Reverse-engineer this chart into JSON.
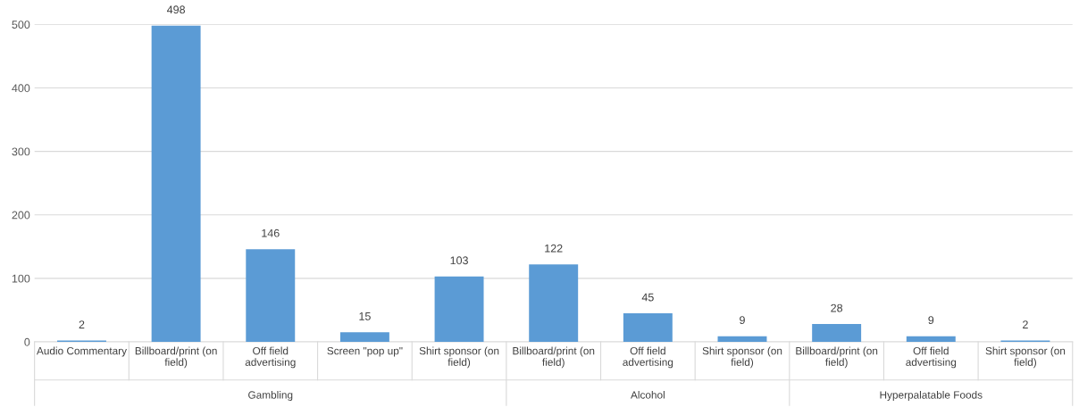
{
  "chart_data": {
    "type": "bar",
    "categories": [
      "Audio Commentary",
      "Billboard/print (on field)",
      "Off field advertising",
      "Screen \"pop up\"",
      "Shirt sponsor (on field)",
      "Billboard/print (on field)",
      "Off field advertising",
      "Shirt sponsor (on field)",
      "Billboard/print (on field)",
      "Off field advertising",
      "Shirt sponsor (on field)"
    ],
    "values": [
      2,
      498,
      146,
      15,
      103,
      122,
      45,
      9,
      28,
      9,
      2
    ],
    "color": "#5b9bd5",
    "data_labels": true,
    "ylim": [
      0,
      500
    ],
    "yticks": [
      0,
      100,
      200,
      300,
      400,
      500
    ],
    "grid": "y",
    "annotations": [
      "Gambling",
      "Alcohol",
      "Hyperpalatable Foods"
    ]
  }
}
